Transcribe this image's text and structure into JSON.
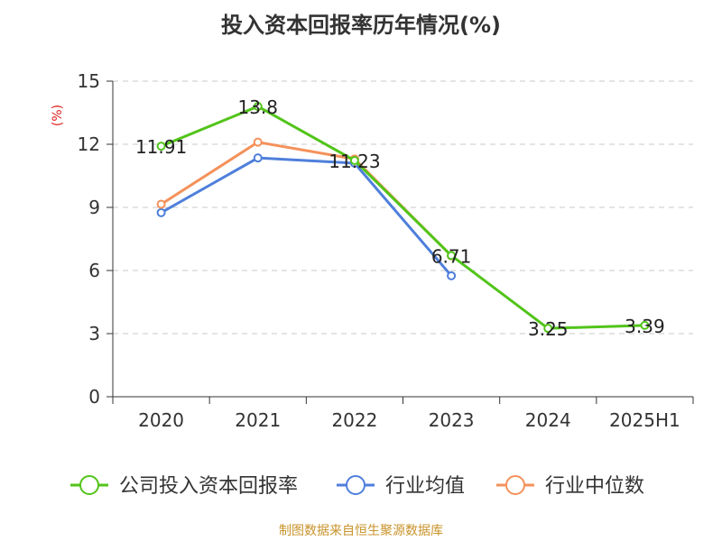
{
  "title": "投入资本回报率历年情况(%)",
  "source": "制图数据来自恒生聚源数据库",
  "chart_data": {
    "type": "line",
    "title": "投入资本回报率历年情况(%)",
    "ylabel": "(%)",
    "xlabel": "",
    "ylim": [
      0,
      15
    ],
    "yticks": [
      "0",
      "3",
      "6",
      "9",
      "12",
      "15"
    ],
    "categories": [
      "2020",
      "2021",
      "2022",
      "2023",
      "2024",
      "2025H1"
    ],
    "grid": true,
    "legend_position": "bottom",
    "series": [
      {
        "name": "公司投入资本回报率",
        "color": "#52c41a",
        "values": [
          11.91,
          13.8,
          11.23,
          6.71,
          3.25,
          3.39
        ],
        "labels": [
          "11.91",
          "13.8",
          "11.23",
          "6.71",
          "3.25",
          "3.39"
        ]
      },
      {
        "name": "行业均值",
        "color": "#4f7fdb",
        "values": [
          8.75,
          11.35,
          11.1,
          5.75,
          null,
          null
        ]
      },
      {
        "name": "行业中位数",
        "color": "#f4915b",
        "values": [
          9.15,
          12.1,
          11.3,
          6.7,
          null,
          null
        ]
      }
    ]
  }
}
